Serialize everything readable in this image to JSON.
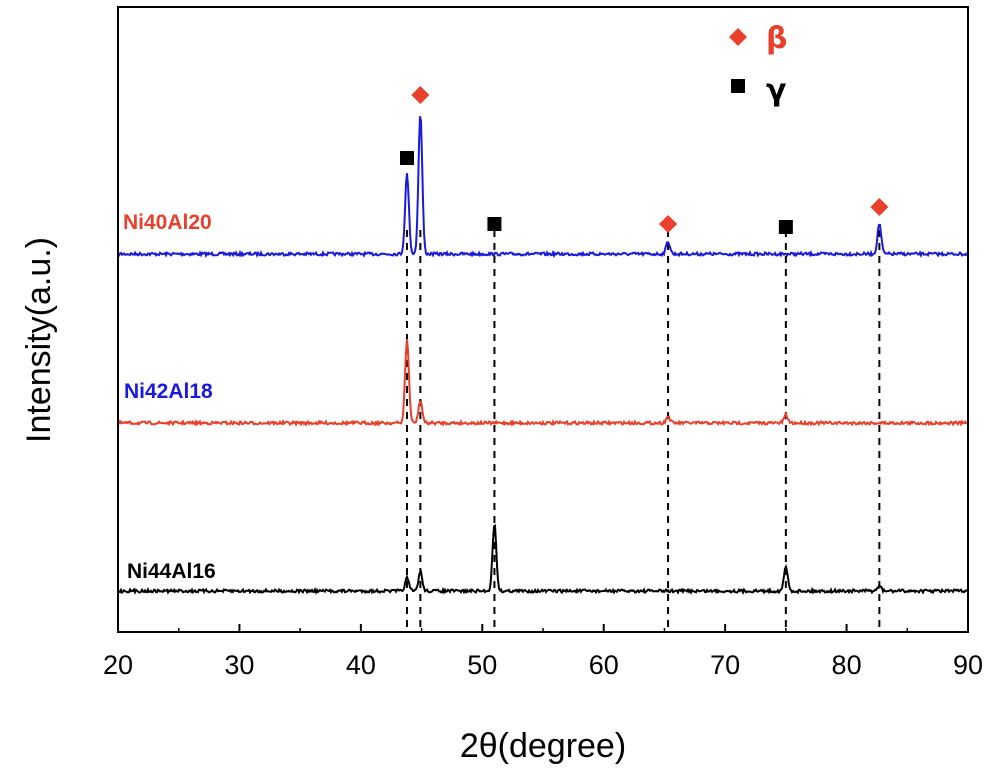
{
  "chart_data": {
    "type": "line",
    "xlabel": "2θ(degree)",
    "ylabel": "Intensity(a.u.)",
    "xlim": [
      20,
      90
    ],
    "xticks": [
      20,
      30,
      40,
      50,
      60,
      70,
      80,
      90
    ],
    "yticks_shown": false,
    "legend": {
      "placement": "top-right",
      "entries": [
        {
          "label": "β",
          "marker": "diamond",
          "color": "#e8402a"
        },
        {
          "label": "γ",
          "marker": "square",
          "color": "#000000"
        }
      ]
    },
    "series": [
      {
        "name": "Ni40Al20",
        "label_color": "#e8402a",
        "line_color": "#1a1adf",
        "baseline": 0.0,
        "peaks": [
          {
            "x": 43.8,
            "height": 0.5
          },
          {
            "x": 44.9,
            "height": 0.88
          },
          {
            "x": 65.3,
            "height": 0.08
          },
          {
            "x": 82.7,
            "height": 0.19
          }
        ]
      },
      {
        "name": "Ni42Al18",
        "label_color": "#1a1adf",
        "line_color": "#e8402a",
        "baseline": 0.0,
        "peaks": [
          {
            "x": 43.8,
            "height": 0.52
          },
          {
            "x": 44.9,
            "height": 0.14
          },
          {
            "x": 65.3,
            "height": 0.04
          },
          {
            "x": 75.0,
            "height": 0.05
          }
        ]
      },
      {
        "name": "Ni44Al16",
        "label_color": "#000000",
        "line_color": "#000000",
        "baseline": 0.0,
        "peaks": [
          {
            "x": 43.8,
            "height": 0.08
          },
          {
            "x": 44.9,
            "height": 0.12
          },
          {
            "x": 51.0,
            "height": 0.42
          },
          {
            "x": 75.0,
            "height": 0.15
          },
          {
            "x": 82.7,
            "height": 0.03
          }
        ]
      }
    ],
    "phase_markers": [
      {
        "phase": "γ",
        "marker": "square",
        "x": 43.8
      },
      {
        "phase": "β",
        "marker": "diamond",
        "x": 44.9
      },
      {
        "phase": "γ",
        "marker": "square",
        "x": 51.0
      },
      {
        "phase": "β",
        "marker": "diamond",
        "x": 65.3
      },
      {
        "phase": "γ",
        "marker": "square",
        "x": 75.0
      },
      {
        "phase": "β",
        "marker": "diamond",
        "x": 82.7
      }
    ],
    "reference_lines_x": [
      43.8,
      44.9,
      51.0,
      65.3,
      75.0,
      82.7
    ],
    "grid": false
  }
}
